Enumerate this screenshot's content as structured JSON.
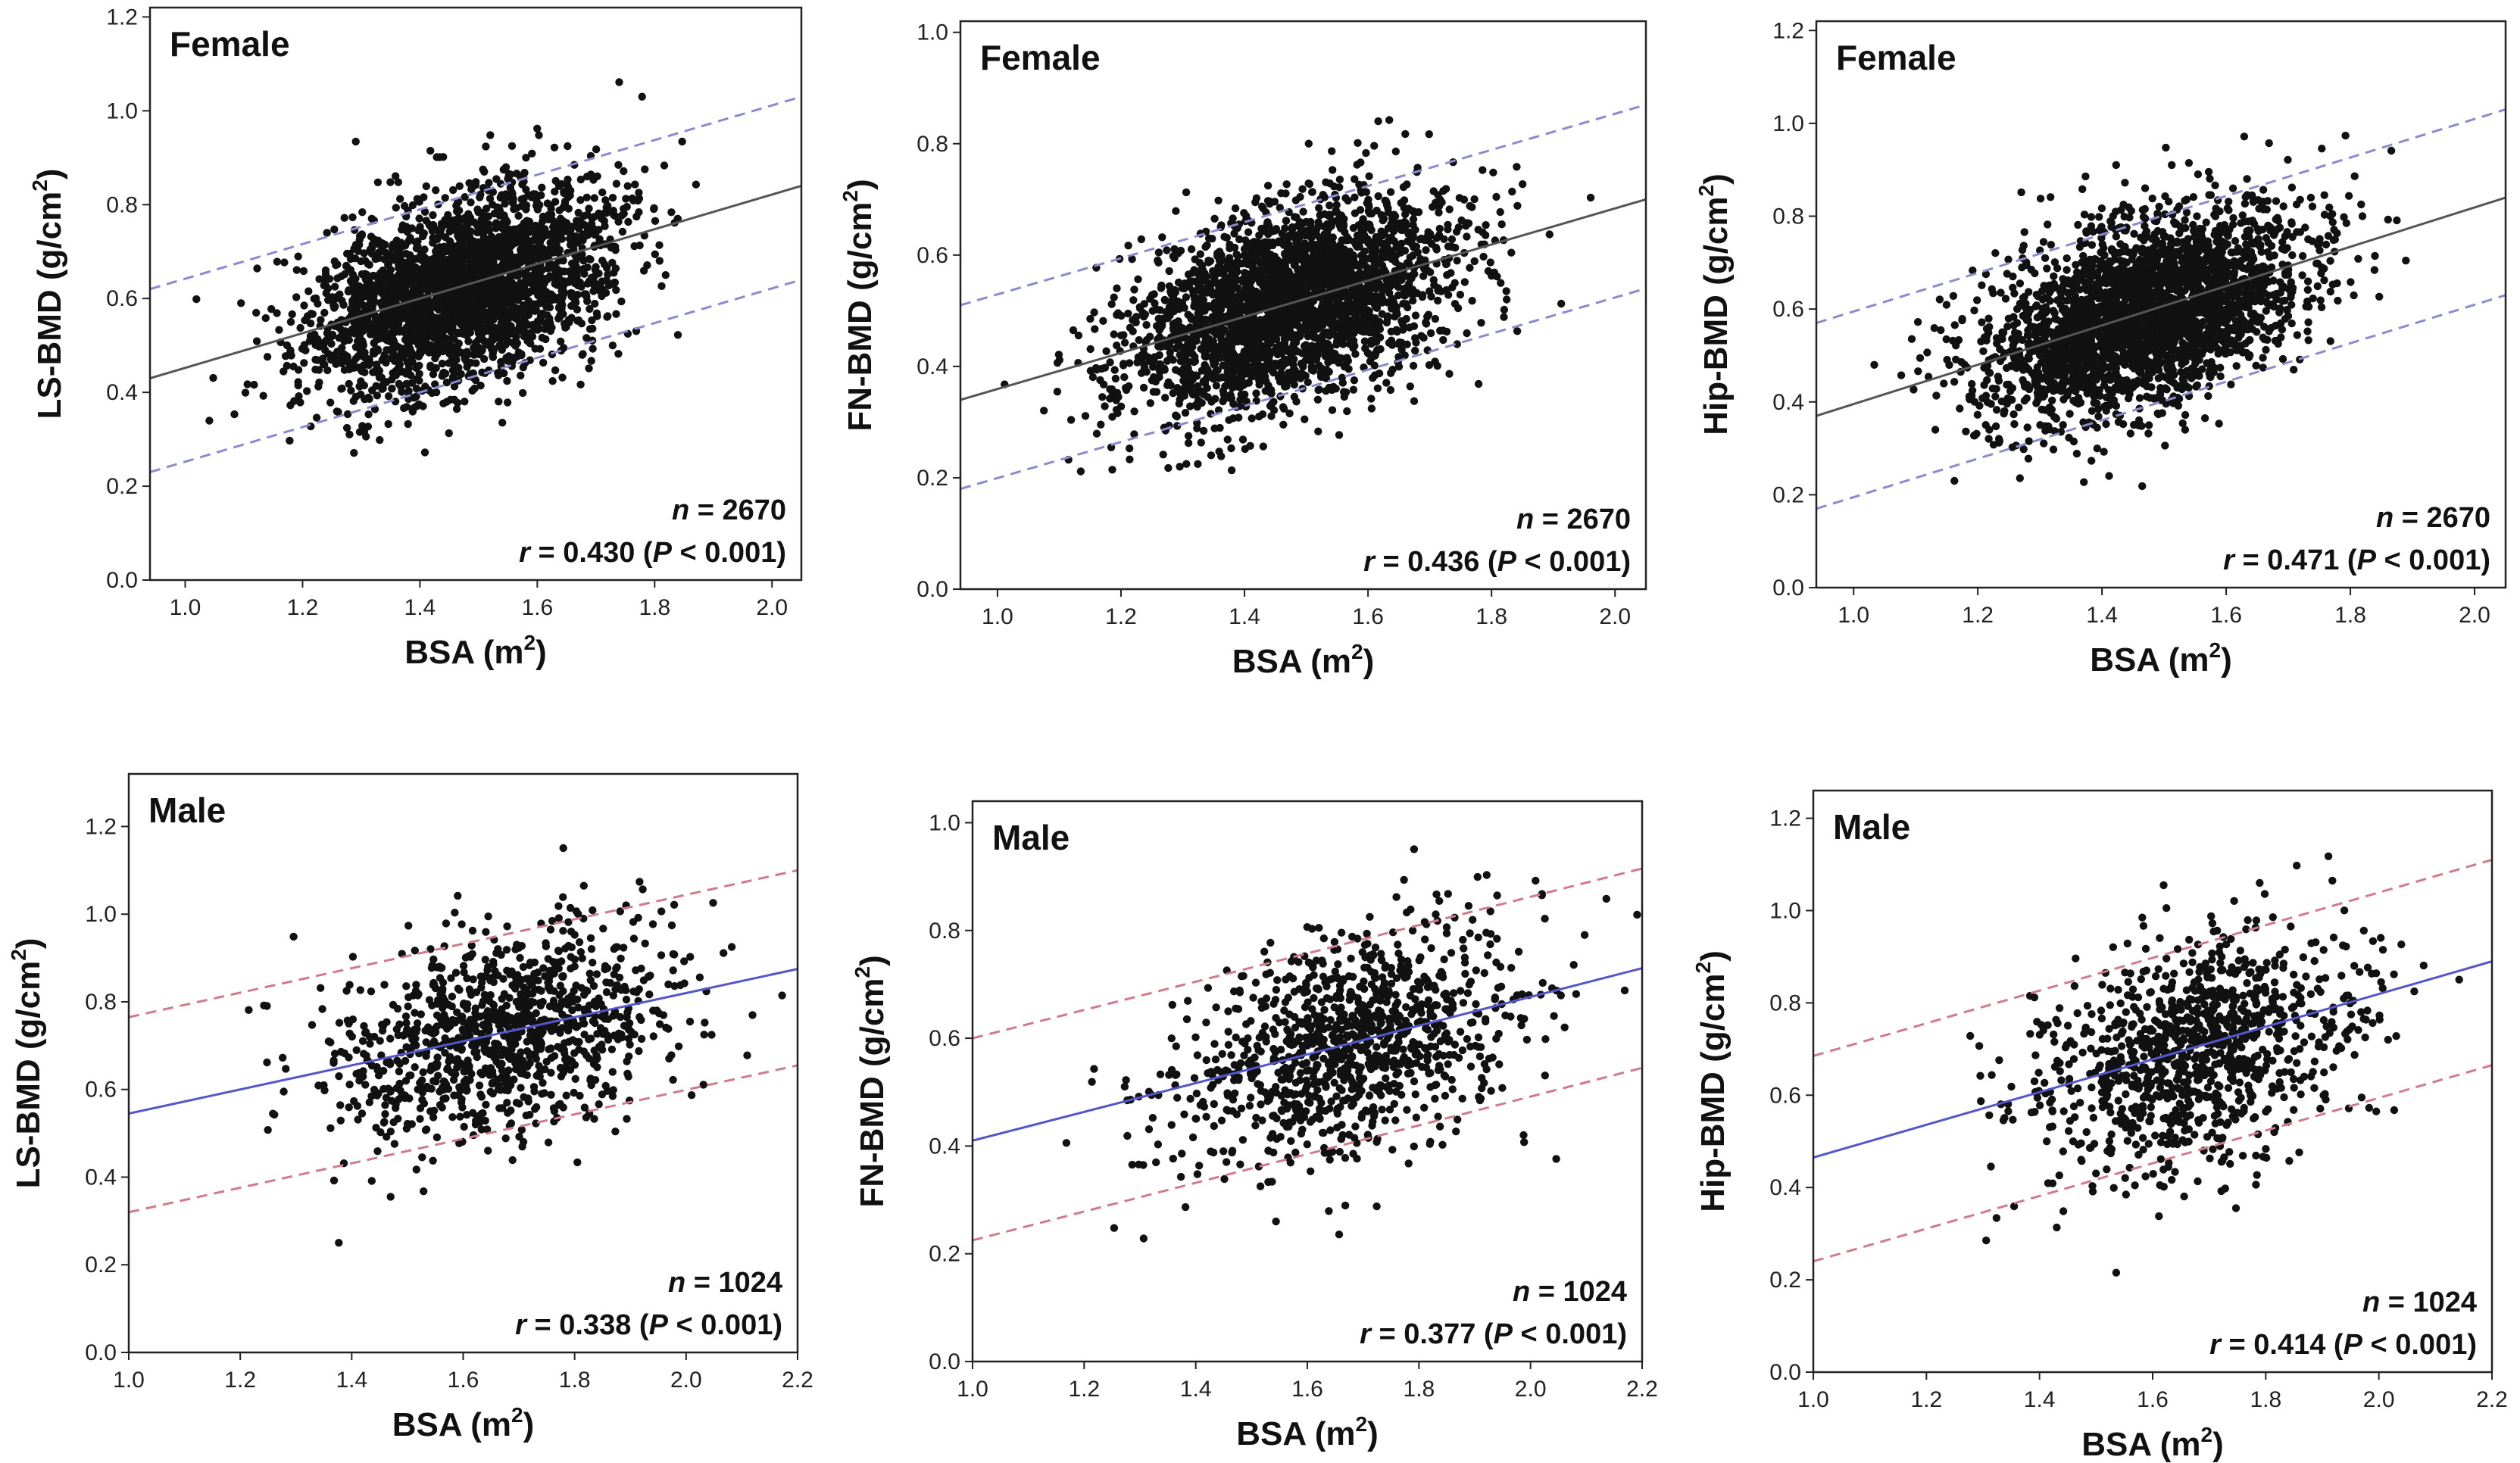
{
  "figure": {
    "colors": {
      "points": "#111111",
      "female_fit": "#555555",
      "female_band": "#8a8ad0",
      "male_fit": "#5555cc",
      "male_band": "#d07a8c"
    }
  },
  "chart_data": [
    {
      "type": "scatter",
      "group": "Female",
      "title": "Female",
      "ylabel_main": "LS-BMD (g/cm",
      "ylabel_sup": "2",
      "ylabel_close": ")",
      "xlabel_main": "BSA (m",
      "xlabel_sup": "2",
      "xlabel_close": ")",
      "xlim": [
        0.94,
        2.05
      ],
      "ylim": [
        0.0,
        1.22
      ],
      "xticks": [
        1.0,
        1.2,
        1.4,
        1.6,
        1.8,
        2.0
      ],
      "xtick_labels": [
        "1.0",
        "1.2",
        "1.4",
        "1.6",
        "1.8",
        "2.0"
      ],
      "yticks": [
        0.0,
        0.2,
        0.4,
        0.6,
        0.8,
        1.0,
        1.2
      ],
      "ytick_labels": [
        "0.0",
        "0.2",
        "0.4",
        "0.6",
        "0.8",
        "1.0",
        "1.2"
      ],
      "fit_line": {
        "x": [
          0.94,
          2.05
        ],
        "y": [
          0.43,
          0.84
        ]
      },
      "band_upper": {
        "x": [
          0.94,
          2.05
        ],
        "y": [
          0.62,
          1.03
        ]
      },
      "band_lower": {
        "x": [
          0.94,
          2.05
        ],
        "y": [
          0.23,
          0.64
        ]
      },
      "n_label": "n",
      "n_value": " = 2670",
      "r_label": "r",
      "r_value": " = 0.430 (",
      "p_label": "P",
      "p_value": " < 0.001)",
      "points": {
        "n": 2670,
        "x_mean": 1.47,
        "x_sd": 0.13,
        "y_mean": 0.62,
        "y_sd": 0.11,
        "r": 0.43,
        "seed": 11
      }
    },
    {
      "type": "scatter",
      "group": "Female",
      "title": "Female",
      "ylabel_main": "FN-BMD (g/cm",
      "ylabel_sup": "2",
      "ylabel_close": ")",
      "xlabel_main": "BSA (m",
      "xlabel_sup": "2",
      "xlabel_close": ")",
      "xlim": [
        0.94,
        2.05
      ],
      "ylim": [
        0.0,
        1.02
      ],
      "xticks": [
        1.0,
        1.2,
        1.4,
        1.6,
        1.8,
        2.0
      ],
      "xtick_labels": [
        "1.0",
        "1.2",
        "1.4",
        "1.6",
        "1.8",
        "2.0"
      ],
      "yticks": [
        0.0,
        0.2,
        0.4,
        0.6,
        0.8,
        1.0
      ],
      "ytick_labels": [
        "0.0",
        "0.2",
        "0.4",
        "0.6",
        "0.8",
        "1.0"
      ],
      "fit_line": {
        "x": [
          0.94,
          2.05
        ],
        "y": [
          0.34,
          0.7
        ]
      },
      "band_upper": {
        "x": [
          0.94,
          2.05
        ],
        "y": [
          0.51,
          0.87
        ]
      },
      "band_lower": {
        "x": [
          0.94,
          2.05
        ],
        "y": [
          0.18,
          0.54
        ]
      },
      "n_label": "n",
      "n_value": " = 2670",
      "r_label": "r",
      "r_value": " = 0.436 (",
      "p_label": "P",
      "p_value": " < 0.001)",
      "points": {
        "n": 2670,
        "x_mean": 1.47,
        "x_sd": 0.13,
        "y_mean": 0.51,
        "y_sd": 0.095,
        "r": 0.436,
        "seed": 23
      }
    },
    {
      "type": "scatter",
      "group": "Female",
      "title": "Female",
      "ylabel_main": "Hip-BMD (g/cm",
      "ylabel_sup": "2",
      "ylabel_close": ")",
      "xlabel_main": "BSA (m",
      "xlabel_sup": "2",
      "xlabel_close": ")",
      "xlim": [
        0.94,
        2.05
      ],
      "ylim": [
        0.0,
        1.22
      ],
      "xticks": [
        1.0,
        1.2,
        1.4,
        1.6,
        1.8,
        2.0
      ],
      "xtick_labels": [
        "1.0",
        "1.2",
        "1.4",
        "1.6",
        "1.8",
        "2.0"
      ],
      "yticks": [
        0.0,
        0.2,
        0.4,
        0.6,
        0.8,
        1.0,
        1.2
      ],
      "ytick_labels": [
        "0.0",
        "0.2",
        "0.4",
        "0.6",
        "0.8",
        "1.0",
        "1.2"
      ],
      "fit_line": {
        "x": [
          0.94,
          2.05
        ],
        "y": [
          0.37,
          0.84
        ]
      },
      "band_upper": {
        "x": [
          0.94,
          2.05
        ],
        "y": [
          0.57,
          1.03
        ]
      },
      "band_lower": {
        "x": [
          0.94,
          2.05
        ],
        "y": [
          0.17,
          0.63
        ]
      },
      "n_label": "n",
      "n_value": " = 2670",
      "r_label": "r",
      "r_value": " = 0.471 (",
      "p_label": "P",
      "p_value": " < 0.001)",
      "points": {
        "n": 2670,
        "x_mean": 1.47,
        "x_sd": 0.13,
        "y_mean": 0.59,
        "y_sd": 0.115,
        "r": 0.471,
        "seed": 37
      }
    },
    {
      "type": "scatter",
      "group": "Male",
      "title": "Male",
      "ylabel_main": "LS-BMD (g/cm",
      "ylabel_sup": "2",
      "ylabel_close": ")",
      "xlabel_main": "BSA (m",
      "xlabel_sup": "2",
      "xlabel_close": ")",
      "xlim": [
        1.0,
        2.2
      ],
      "ylim": [
        0.0,
        1.32
      ],
      "xticks": [
        1.0,
        1.2,
        1.4,
        1.6,
        1.8,
        2.0,
        2.2
      ],
      "xtick_labels": [
        "1.0",
        "1.2",
        "1.4",
        "1.6",
        "1.8",
        "2.0",
        "2.2"
      ],
      "yticks": [
        0.0,
        0.2,
        0.4,
        0.6,
        0.8,
        1.0,
        1.2
      ],
      "ytick_labels": [
        "0.0",
        "0.2",
        "0.4",
        "0.6",
        "0.8",
        "1.0",
        "1.2"
      ],
      "fit_line": {
        "x": [
          1.0,
          2.2
        ],
        "y": [
          0.545,
          0.875
        ]
      },
      "band_upper": {
        "x": [
          1.0,
          2.2
        ],
        "y": [
          0.765,
          1.1
        ]
      },
      "band_lower": {
        "x": [
          1.0,
          2.2
        ],
        "y": [
          0.32,
          0.655
        ]
      },
      "n_label": "n",
      "n_value": " = 1024",
      "r_label": "r",
      "r_value": " = 0.338 (",
      "p_label": "P",
      "p_value": " < 0.001)",
      "points": {
        "n": 1024,
        "x_mean": 1.68,
        "x_sd": 0.15,
        "y_mean": 0.73,
        "y_sd": 0.125,
        "r": 0.338,
        "seed": 41
      }
    },
    {
      "type": "scatter",
      "group": "Male",
      "title": "Male",
      "ylabel_main": "FN-BMD (g/cm",
      "ylabel_sup": "2",
      "ylabel_close": ")",
      "xlabel_main": "BSA (m",
      "xlabel_sup": "2",
      "xlabel_close": ")",
      "xlim": [
        1.0,
        2.2
      ],
      "ylim": [
        0.0,
        1.04
      ],
      "xticks": [
        1.0,
        1.2,
        1.4,
        1.6,
        1.8,
        2.0,
        2.2
      ],
      "xtick_labels": [
        "1.0",
        "1.2",
        "1.4",
        "1.6",
        "1.8",
        "2.0",
        "2.2"
      ],
      "yticks": [
        0.0,
        0.2,
        0.4,
        0.6,
        0.8,
        1.0
      ],
      "ytick_labels": [
        "0.0",
        "0.2",
        "0.4",
        "0.6",
        "0.8",
        "1.0"
      ],
      "fit_line": {
        "x": [
          1.0,
          2.2
        ],
        "y": [
          0.41,
          0.73
        ]
      },
      "band_upper": {
        "x": [
          1.0,
          2.2
        ],
        "y": [
          0.6,
          0.915
        ]
      },
      "band_lower": {
        "x": [
          1.0,
          2.2
        ],
        "y": [
          0.225,
          0.545
        ]
      },
      "n_label": "n",
      "n_value": " = 1024",
      "r_label": "r",
      "r_value": " = 0.377 (",
      "p_label": "P",
      "p_value": " < 0.001)",
      "points": {
        "n": 1024,
        "x_mean": 1.68,
        "x_sd": 0.15,
        "y_mean": 0.59,
        "y_sd": 0.11,
        "r": 0.377,
        "seed": 53
      }
    },
    {
      "type": "scatter",
      "group": "Male",
      "title": "Male",
      "ylabel_main": "Hip-BMD (g/cm",
      "ylabel_sup": "2",
      "ylabel_close": ")",
      "xlabel_main": "BSA (m",
      "xlabel_sup": "2",
      "xlabel_close": ")",
      "xlim": [
        1.0,
        2.2
      ],
      "ylim": [
        0.0,
        1.26
      ],
      "xticks": [
        1.0,
        1.2,
        1.4,
        1.6,
        1.8,
        2.0,
        2.2
      ],
      "xtick_labels": [
        "1.0",
        "1.2",
        "1.4",
        "1.6",
        "1.8",
        "2.0",
        "2.2"
      ],
      "yticks": [
        0.0,
        0.2,
        0.4,
        0.6,
        0.8,
        1.0,
        1.2
      ],
      "ytick_labels": [
        "0.0",
        "0.2",
        "0.4",
        "0.6",
        "0.8",
        "1.0",
        "1.2"
      ],
      "fit_line": {
        "x": [
          1.0,
          2.2
        ],
        "y": [
          0.465,
          0.89
        ]
      },
      "band_upper": {
        "x": [
          1.0,
          2.2
        ],
        "y": [
          0.685,
          1.11
        ]
      },
      "band_lower": {
        "x": [
          1.0,
          2.2
        ],
        "y": [
          0.24,
          0.665
        ]
      },
      "n_label": "n",
      "n_value": " = 1024",
      "r_label": "r",
      "r_value": " = 0.414 (",
      "p_label": "P",
      "p_value": " < 0.001)",
      "points": {
        "n": 1024,
        "x_mean": 1.68,
        "x_sd": 0.15,
        "y_mean": 0.7,
        "y_sd": 0.13,
        "r": 0.414,
        "seed": 67
      }
    }
  ]
}
